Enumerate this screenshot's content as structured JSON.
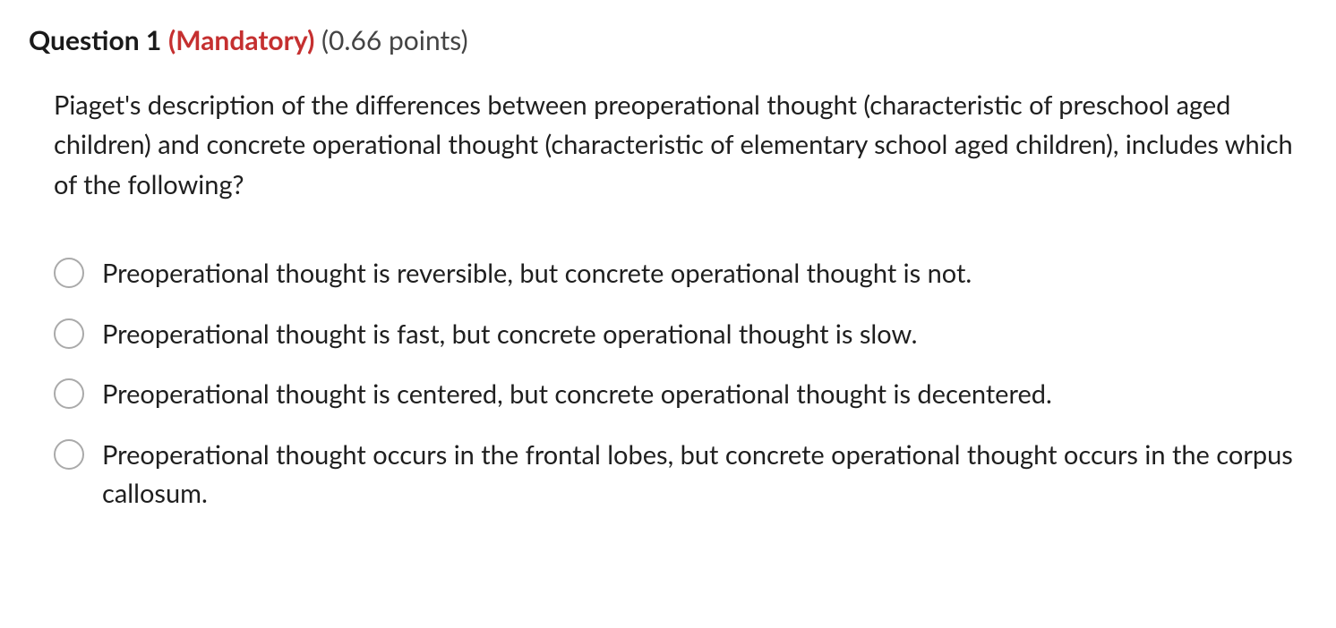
{
  "header": {
    "question_number": "Question 1",
    "mandatory": "(Mandatory)",
    "points": "(0.66 points)"
  },
  "question": {
    "text": "Piaget's description of the differences between preoperational thought (characteristic of preschool aged children) and concrete operational thought (characteristic of elementary school aged children), includes which of the following?"
  },
  "options": [
    {
      "label": "Preoperational thought is reversible, but concrete operational thought is not."
    },
    {
      "label": "Preoperational thought is fast, but concrete operational thought is slow."
    },
    {
      "label": "Preoperational thought is centered, but concrete operational thought is decentered."
    },
    {
      "label": "Preoperational thought occurs in the frontal lobes, but concrete operational thought occurs in the corpus callosum."
    }
  ],
  "styling": {
    "background_color": "#ffffff",
    "text_color": "#1f1f1f",
    "mandatory_color": "#c53030",
    "points_color": "#444444",
    "radio_border_color": "#aaaaaa",
    "body_fontsize": 29,
    "header_fontsize": 30,
    "radio_diameter": 34
  }
}
